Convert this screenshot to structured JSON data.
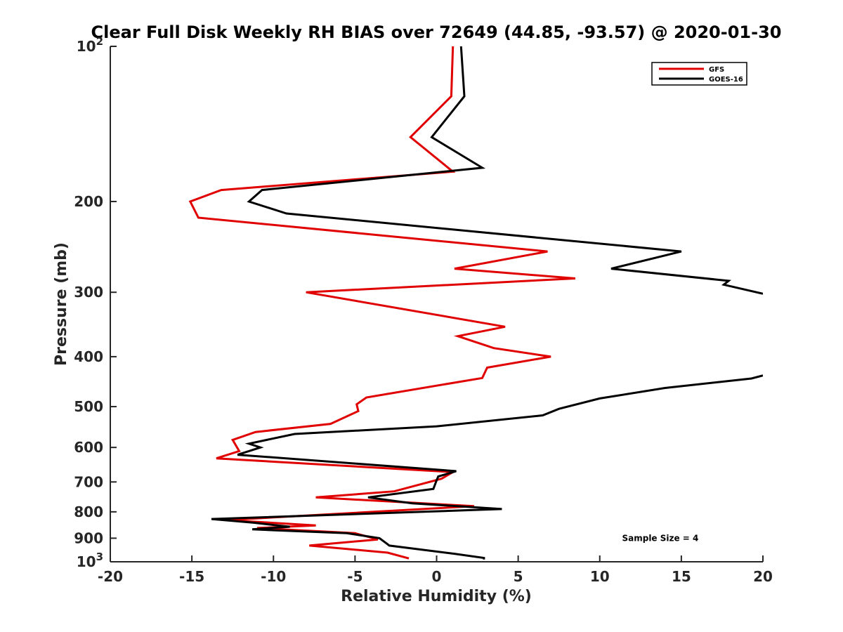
{
  "chart_data": {
    "type": "line",
    "title": "Clear Full Disk Weekly RH BIAS over 72649 (44.85, -93.57) @ 2020-01-30",
    "xlabel": "Relative Humidity (%)",
    "ylabel": "Pressure (mb)",
    "xlim": [
      -20,
      20
    ],
    "ylim": [
      100,
      1000
    ],
    "y_scale": "log",
    "y_reversed": true,
    "grid": false,
    "legend_position": "top-right",
    "x_ticks": [
      -20,
      -15,
      -10,
      -5,
      0,
      5,
      10,
      15,
      20
    ],
    "y_ticks": [
      {
        "value": 100,
        "base": "10",
        "exp": "2"
      },
      {
        "value": 200,
        "label": "200"
      },
      {
        "value": 300,
        "label": "300"
      },
      {
        "value": 400,
        "label": "400"
      },
      {
        "value": 500,
        "label": "500"
      },
      {
        "value": 600,
        "label": "600"
      },
      {
        "value": 700,
        "label": "700"
      },
      {
        "value": 800,
        "label": "800"
      },
      {
        "value": 900,
        "label": "900"
      },
      {
        "value": 1000,
        "base": "10",
        "exp": "3"
      }
    ],
    "series": [
      {
        "name": "GFS",
        "color": "#e00000",
        "points": [
          [
            1.0,
            100
          ],
          [
            0.9,
            125
          ],
          [
            -1.6,
            150
          ],
          [
            1.0,
            175
          ],
          [
            -13.2,
            190
          ],
          [
            -15.1,
            200
          ],
          [
            -14.6,
            215
          ],
          [
            6.8,
            250
          ],
          [
            1.1,
            270
          ],
          [
            8.5,
            282
          ],
          [
            -8.0,
            300
          ],
          [
            4.2,
            350
          ],
          [
            1.3,
            365
          ],
          [
            3.5,
            385
          ],
          [
            7.0,
            400
          ],
          [
            3.1,
            420
          ],
          [
            2.8,
            440
          ],
          [
            -4.3,
            480
          ],
          [
            -4.9,
            495
          ],
          [
            -4.8,
            510
          ],
          [
            -6.5,
            540
          ],
          [
            -11.1,
            560
          ],
          [
            -12.5,
            580
          ],
          [
            -12.1,
            610
          ],
          [
            -13.5,
            630
          ],
          [
            1.0,
            670
          ],
          [
            0.3,
            690
          ],
          [
            -2.6,
            730
          ],
          [
            -7.4,
            750
          ],
          [
            2.3,
            780
          ],
          [
            -12.9,
            830
          ],
          [
            -7.4,
            850
          ],
          [
            -11.0,
            860
          ],
          [
            -5.0,
            880
          ],
          [
            -3.6,
            905
          ],
          [
            -7.8,
            930
          ],
          [
            -3.0,
            960
          ],
          [
            -1.7,
            985
          ]
        ]
      },
      {
        "name": "GOES-16",
        "color": "#000000",
        "points": [
          [
            1.5,
            100
          ],
          [
            1.7,
            125
          ],
          [
            -0.3,
            150
          ],
          [
            2.8,
            172
          ],
          [
            -10.7,
            190
          ],
          [
            -11.5,
            200
          ],
          [
            -9.2,
            211
          ],
          [
            15.0,
            250
          ],
          [
            10.7,
            270
          ],
          [
            17.9,
            285
          ],
          [
            17.6,
            290
          ],
          [
            20.0,
            302
          ],
          [
            null,
            null
          ],
          [
            20.0,
            435
          ],
          [
            19.3,
            441
          ],
          [
            14.0,
            460
          ],
          [
            10.0,
            482
          ],
          [
            7.5,
            505
          ],
          [
            6.5,
            520
          ],
          [
            0.0,
            546
          ],
          [
            -8.7,
            565
          ],
          [
            -11.5,
            590
          ],
          [
            -10.8,
            600
          ],
          [
            -12.2,
            620
          ],
          [
            1.2,
            667
          ],
          [
            0.1,
            683
          ],
          [
            0.0,
            695
          ],
          [
            -0.2,
            722
          ],
          [
            -4.2,
            750
          ],
          [
            -1.5,
            770
          ],
          [
            4.0,
            790
          ],
          [
            -13.8,
            826
          ],
          [
            -11.2,
            840
          ],
          [
            -9.0,
            855
          ],
          [
            -11.3,
            865
          ],
          [
            -5.5,
            880
          ],
          [
            -3.5,
            900
          ],
          [
            -3.0,
            925
          ],
          [
            -2.9,
            930
          ],
          [
            1.1,
            965
          ],
          [
            2.9,
            983
          ],
          [
            2.9,
            990
          ]
        ]
      }
    ],
    "annotations": [
      {
        "text": "Sample Size = 4",
        "x": 15.5,
        "y": 900
      }
    ]
  }
}
